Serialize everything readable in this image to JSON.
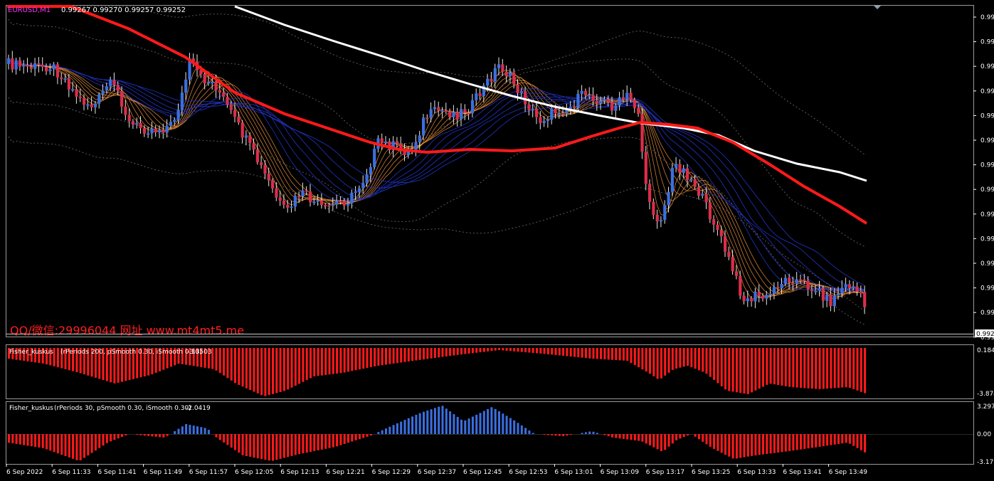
{
  "main_chart": {
    "symbol_label": "EURUSD,M1",
    "ohlc_text": "0.99267 0.99270 0.99257 0.99252",
    "watermark": "QQ/微信:29996044 网址 www.mt4mt5.me",
    "price_labels": [
      "0.996",
      "0.996",
      "0.995",
      "0.995",
      "0.995",
      "0.994",
      "0.994",
      "0.994",
      "0.993",
      "0.993",
      "0.993",
      "0.993",
      "0.992",
      "0.992"
    ],
    "current_price_box": "0.992",
    "colors": {
      "bull": "#3b6fe0",
      "bear": "#dc2d4a",
      "ma_red": "#ff1a1a",
      "ma_white": "#ffffff",
      "ma_blue": "#1f2fb0",
      "ma_orange": "#e08a3a",
      "envelope": "#5a5a5a"
    }
  },
  "indicator1": {
    "name": "Fisher_kuskus",
    "params": "(rPeriods 200, pSmooth 0.30, iSmooth 0.30)",
    "value": "-3.3503",
    "axis_labels": [
      "0.184",
      "-3.874"
    ],
    "color": "#ff1a1a"
  },
  "indicator2": {
    "name": "Fisher_kuskus",
    "params": "(rPeriods 30, pSmooth 0.30, iSmooth 0.30)",
    "value": "-2.0419",
    "axis_labels": [
      "3.297",
      "0.00",
      "-3.179"
    ],
    "pos_color": "#3b6fe0",
    "neg_color": "#ff1a1a"
  },
  "time_axis": [
    "6 Sep 2022",
    "6 Sep 11:33",
    "6 Sep 11:41",
    "6 Sep 11:49",
    "6 Sep 11:57",
    "6 Sep 12:05",
    "6 Sep 12:13",
    "6 Sep 12:21",
    "6 Sep 12:29",
    "6 Sep 12:37",
    "6 Sep 12:45",
    "6 Sep 12:53",
    "6 Sep 13:01",
    "6 Sep 13:09",
    "6 Sep 13:17",
    "6 Sep 13:25",
    "6 Sep 13:33",
    "6 Sep 13:41",
    "6 Sep 13:49"
  ]
}
